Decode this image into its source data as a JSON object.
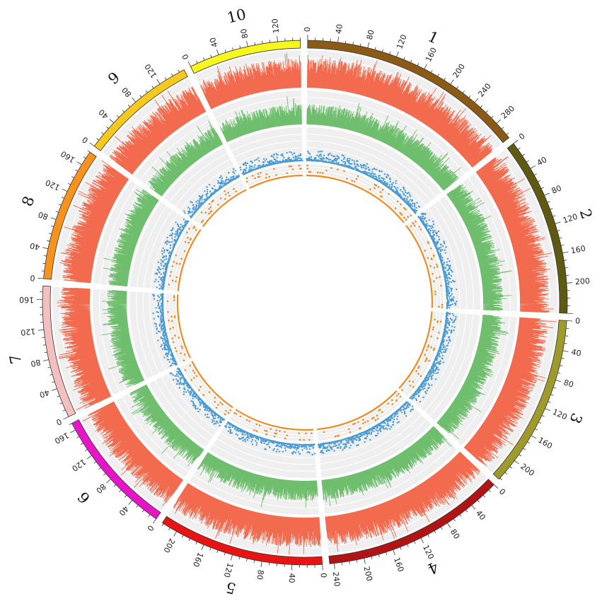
{
  "chart_data": {
    "type": "circos",
    "units": "Mb",
    "tick_step": 10,
    "label_step": 40,
    "chromosomes": [
      {
        "name": "1",
        "length": 305,
        "color": "#8B5A14",
        "tick_labels": [
          "0",
          "40",
          "80",
          "120",
          "160",
          "200",
          "240",
          "280"
        ]
      },
      {
        "name": "2",
        "length": 240,
        "color": "#5E5A12",
        "tick_labels": [
          "0",
          "40",
          "80",
          "120",
          "160",
          "200"
        ]
      },
      {
        "name": "3",
        "length": 232,
        "color": "#9E9A2C",
        "tick_labels": [
          "0",
          "40",
          "80",
          "120",
          "160",
          "200"
        ]
      },
      {
        "name": "4",
        "length": 246,
        "color": "#B01414",
        "tick_labels": [
          "0",
          "40",
          "80",
          "120",
          "160",
          "200",
          "240"
        ]
      },
      {
        "name": "5",
        "length": 222,
        "color": "#E81414",
        "tick_labels": [
          "0",
          "40",
          "80",
          "120",
          "160",
          "200"
        ]
      },
      {
        "name": "6",
        "length": 170,
        "color": "#E814C8",
        "tick_labels": [
          "0",
          "40",
          "80",
          "120",
          "160"
        ]
      },
      {
        "name": "7",
        "length": 178,
        "color": "#F4BFBF",
        "tick_labels": [
          "0",
          "40",
          "80",
          "120",
          "160"
        ]
      },
      {
        "name": "8",
        "length": 180,
        "color": "#F7921E",
        "tick_labels": [
          "0",
          "40",
          "80",
          "120",
          "160"
        ]
      },
      {
        "name": "9",
        "length": 157,
        "color": "#F7C81E",
        "tick_labels": [
          "0",
          "40",
          "80",
          "120"
        ]
      },
      {
        "name": "10",
        "length": 150,
        "color": "#F7F71E",
        "tick_labels": [
          "0",
          "40",
          "80",
          "120"
        ]
      }
    ],
    "tracks": [
      {
        "type": "histogram",
        "color": "#F26B4E"
      },
      {
        "type": "histogram",
        "color": "#6EBE6E"
      },
      {
        "type": "scatter",
        "color": "#4A9BD4"
      },
      {
        "type": "scatter",
        "color": "#F08A24"
      }
    ],
    "track_background": "#EFEFEF",
    "grid_color": "#DADADA"
  }
}
